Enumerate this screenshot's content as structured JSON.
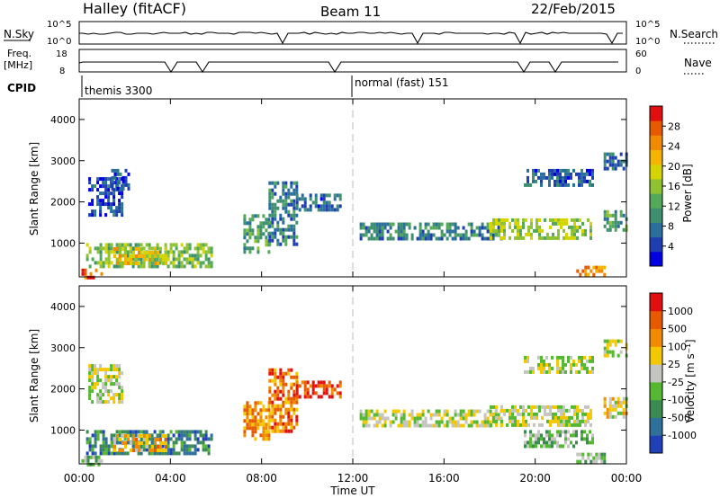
{
  "header": {
    "station": "Halley (fitACF)",
    "beam": "Beam 11",
    "date": "22/Feb/2015"
  },
  "strip_labels": {
    "nsky": "N.Sky",
    "nsky_ticks": [
      "10^5",
      "10^0"
    ],
    "nsearch": "N.Search",
    "nsearch_ticks": [
      "10^5",
      "10^0"
    ],
    "freq_line1": "Freq.",
    "freq_line2": "[MHz]",
    "freq_ticks": [
      "18",
      "8"
    ],
    "nave": "Nave",
    "nave_ticks": [
      "60",
      "0"
    ],
    "cpid": "CPID",
    "cpid_1": "themis 3300",
    "cpid_2": "normal (fast) 151"
  },
  "chart_data": [
    {
      "type": "heatmap",
      "title": "",
      "xlabel": "",
      "ylabel": "Slant Range [km]",
      "x_ticks": [
        "00:00",
        "04:00",
        "08:00",
        "12:00",
        "16:00",
        "20:00",
        "00:00"
      ],
      "y_ticks": [
        "1000",
        "2000",
        "3000",
        "4000"
      ],
      "xlim": [
        0,
        24
      ],
      "ylim": [
        180,
        4500
      ],
      "colorbar": {
        "label": "Power [dB]",
        "ticks": [
          "4",
          "8",
          "12",
          "16",
          "20",
          "24",
          "28"
        ],
        "colors": [
          "#0000e0",
          "#1f3fb0",
          "#2a6f9c",
          "#3d8f70",
          "#53a85a",
          "#8fc232",
          "#d4d400",
          "#f4b400",
          "#f08a00",
          "#e85a00",
          "#e01010"
        ]
      },
      "blobs": [
        {
          "t0": 0.4,
          "t1": 1.9,
          "r0": 1700,
          "r1": 2600,
          "lvl": 1.2
        },
        {
          "t0": 1.4,
          "t1": 2.2,
          "r0": 2300,
          "r1": 2800,
          "lvl": 1.3
        },
        {
          "t0": 0.3,
          "t1": 5.8,
          "r0": 450,
          "r1": 1000,
          "lvl": 4.5
        },
        {
          "t0": 1.5,
          "t1": 3.8,
          "r0": 550,
          "r1": 900,
          "lvl": 6.5
        },
        {
          "t0": 0.1,
          "t1": 1.0,
          "r0": 190,
          "r1": 380,
          "lvl": 8.5
        },
        {
          "t0": 7.2,
          "t1": 8.3,
          "r0": 800,
          "r1": 1700,
          "lvl": 3.5
        },
        {
          "t0": 8.3,
          "t1": 9.5,
          "r0": 1000,
          "r1": 2500,
          "lvl": 2.5
        },
        {
          "t0": 9.5,
          "t1": 11.4,
          "r0": 1800,
          "r1": 2200,
          "lvl": 1.8
        },
        {
          "t0": 12.3,
          "t1": 18.5,
          "r0": 1150,
          "r1": 1500,
          "lvl": 2.5
        },
        {
          "t0": 18.0,
          "t1": 22.5,
          "r0": 1100,
          "r1": 1600,
          "lvl": 5.0
        },
        {
          "t0": 19.5,
          "t1": 22.5,
          "r0": 2400,
          "r1": 2800,
          "lvl": 1.5
        },
        {
          "t0": 23.0,
          "t1": 24.0,
          "r0": 1300,
          "r1": 1800,
          "lvl": 3.5
        },
        {
          "t0": 23.0,
          "t1": 24.0,
          "r0": 2800,
          "r1": 3200,
          "lvl": 2.0
        },
        {
          "t0": 21.8,
          "t1": 23.0,
          "r0": 190,
          "r1": 450,
          "lvl": 8.0
        }
      ]
    },
    {
      "type": "heatmap",
      "title": "",
      "xlabel": "Time UT",
      "ylabel": "Slant Range [km]",
      "x_ticks": [
        "00:00",
        "04:00",
        "08:00",
        "12:00",
        "16:00",
        "20:00",
        "00:00"
      ],
      "y_ticks": [
        "1000",
        "2000",
        "3000",
        "4000"
      ],
      "xlim": [
        0,
        24
      ],
      "ylim": [
        180,
        4500
      ],
      "colorbar": {
        "label": "Velocity [m s⁻¹]",
        "ticks": [
          "1000",
          "500",
          "100",
          "25",
          "-25",
          "-100",
          "-500",
          "-1000"
        ],
        "colors": [
          "#2040b8",
          "#2f6f9a",
          "#3b8a52",
          "#55b832",
          "#c4c4c0",
          "#f4c800",
          "#f08a00",
          "#e85a00",
          "#e01010"
        ]
      },
      "blobs": [
        {
          "t0": 0.4,
          "t1": 1.9,
          "r0": 1700,
          "r1": 2600,
          "lvl": 4.0
        },
        {
          "t0": 0.3,
          "t1": 5.8,
          "r0": 450,
          "r1": 1000,
          "lvl": 1.5
        },
        {
          "t0": 1.5,
          "t1": 3.8,
          "r0": 550,
          "r1": 900,
          "lvl": 5.5
        },
        {
          "t0": 0.1,
          "t1": 1.0,
          "r0": 190,
          "r1": 380,
          "lvl": 3.0
        },
        {
          "t0": 7.2,
          "t1": 8.3,
          "r0": 800,
          "r1": 1700,
          "lvl": 6.0
        },
        {
          "t0": 8.3,
          "t1": 9.5,
          "r0": 1000,
          "r1": 2500,
          "lvl": 6.5
        },
        {
          "t0": 9.5,
          "t1": 11.4,
          "r0": 1800,
          "r1": 2200,
          "lvl": 7.5
        },
        {
          "t0": 12.3,
          "t1": 18.5,
          "r0": 1150,
          "r1": 1500,
          "lvl": 4.0
        },
        {
          "t0": 18.0,
          "t1": 22.5,
          "r0": 1100,
          "r1": 1600,
          "lvl": 4.0
        },
        {
          "t0": 19.5,
          "t1": 22.5,
          "r0": 600,
          "r1": 1000,
          "lvl": 3.0
        },
        {
          "t0": 19.5,
          "t1": 22.5,
          "r0": 2400,
          "r1": 2800,
          "lvl": 4.0
        },
        {
          "t0": 23.0,
          "t1": 24.0,
          "r0": 1300,
          "r1": 1800,
          "lvl": 4.5
        },
        {
          "t0": 23.0,
          "t1": 24.0,
          "r0": 2800,
          "r1": 3200,
          "lvl": 4.0
        },
        {
          "t0": 21.8,
          "t1": 23.0,
          "r0": 190,
          "r1": 450,
          "lvl": 3.0
        }
      ]
    }
  ]
}
